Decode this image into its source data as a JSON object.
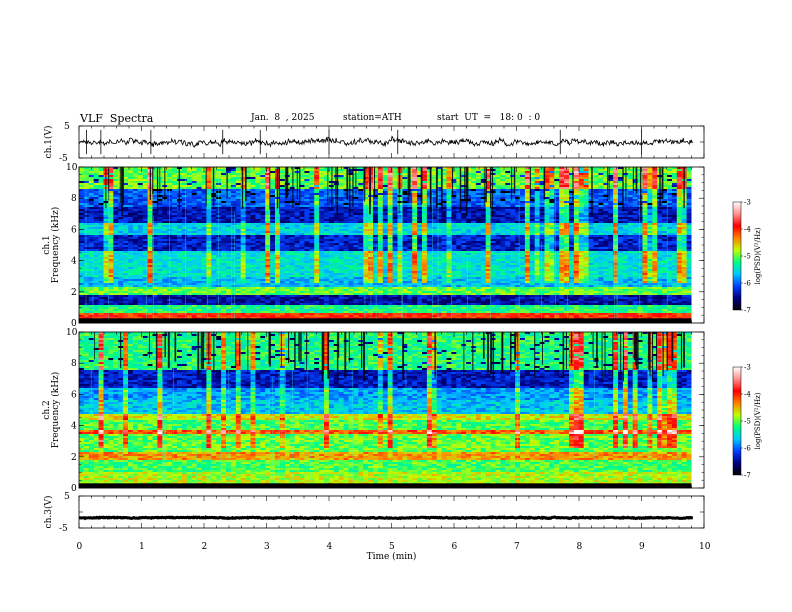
{
  "header": {
    "title": "VLF  Spectra",
    "date": "Jan.  8  , 2025",
    "station": "station=ATH",
    "start": "start  UT  =   18: 0  : 0"
  },
  "chart_data": [
    {
      "id": "ch1-waveform",
      "type": "line",
      "ylabel": "ch.1(V)",
      "ylim": [
        -5,
        5
      ],
      "yticks": [
        "5",
        "-5"
      ],
      "xlim": [
        0,
        10
      ],
      "series": [
        {
          "mean": 0,
          "noise_amplitude": 1.3,
          "spikes": [
            0.12,
            0.35,
            1.15,
            2.3,
            2.9,
            4.0,
            5.1,
            7.7,
            9.0
          ]
        }
      ],
      "color": "#000000"
    },
    {
      "id": "ch1-spectrogram",
      "type": "heatmap",
      "ylabel_top": "ch.1",
      "ylabel": "Frequency (kHz)",
      "ylim": [
        0,
        10
      ],
      "yticks": [
        "0",
        "2",
        "4",
        "6",
        "8",
        "10"
      ],
      "xlim": [
        0,
        9.8
      ],
      "colorbar": {
        "label": "log(PSD)(V²/Hz)",
        "range": [
          -7,
          -3
        ],
        "ticks": [
          "-3",
          "-4",
          "-5",
          "-6",
          "-7"
        ],
        "colors": [
          "#000000",
          "#000080",
          "#0040ff",
          "#00c8ff",
          "#00ff80",
          "#c0ff00",
          "#ff8000",
          "#ff0000",
          "#ff9090",
          "#ffffff"
        ]
      },
      "bands": [
        {
          "range": [
            0.0,
            0.3
          ],
          "level": 0.02
        },
        {
          "range": [
            0.3,
            0.7
          ],
          "level": 0.75
        },
        {
          "range": [
            0.7,
            1.1
          ],
          "level": 0.45
        },
        {
          "range": [
            1.1,
            1.8
          ],
          "level": 0.14
        },
        {
          "range": [
            1.8,
            2.3
          ],
          "level": 0.5
        },
        {
          "range": [
            2.3,
            3.0
          ],
          "level": 0.33
        },
        {
          "range": [
            3.0,
            4.6
          ],
          "level": 0.38
        },
        {
          "range": [
            4.6,
            5.6
          ],
          "level": 0.17
        },
        {
          "range": [
            5.6,
            6.4
          ],
          "level": 0.36
        },
        {
          "range": [
            6.4,
            7.4
          ],
          "level": 0.15
        },
        {
          "range": [
            7.4,
            8.6
          ],
          "level": 0.24
        },
        {
          "range": [
            8.6,
            10.0
          ],
          "level": 0.5
        }
      ]
    },
    {
      "id": "ch2-spectrogram",
      "type": "heatmap",
      "ylabel_top": "ch.2",
      "ylabel": "Frequency (kHz)",
      "ylim": [
        0,
        10
      ],
      "yticks": [
        "0",
        "2",
        "4",
        "6",
        "8",
        "10"
      ],
      "xlim": [
        0,
        9.8
      ],
      "colorbar": {
        "label": "log(PSD)(V²/Hz)",
        "range": [
          -7,
          -3
        ],
        "ticks": [
          "-3",
          "-4",
          "-5",
          "-6",
          "-7"
        ],
        "colors": [
          "#000000",
          "#000080",
          "#0040ff",
          "#00c8ff",
          "#00ff80",
          "#c0ff00",
          "#ff8000",
          "#ff0000",
          "#ff9090",
          "#ffffff"
        ]
      },
      "bands": [
        {
          "range": [
            0.0,
            0.3
          ],
          "level": 0.02
        },
        {
          "range": [
            0.3,
            1.0
          ],
          "level": 0.55
        },
        {
          "range": [
            1.0,
            1.8
          ],
          "level": 0.48
        },
        {
          "range": [
            1.8,
            2.3
          ],
          "level": 0.65
        },
        {
          "range": [
            2.3,
            3.4
          ],
          "level": 0.5
        },
        {
          "range": [
            3.4,
            3.7
          ],
          "level": 0.7
        },
        {
          "range": [
            3.7,
            4.4
          ],
          "level": 0.48
        },
        {
          "range": [
            4.4,
            4.8
          ],
          "level": 0.58
        },
        {
          "range": [
            4.8,
            5.6
          ],
          "level": 0.34
        },
        {
          "range": [
            5.6,
            6.4
          ],
          "level": 0.3
        },
        {
          "range": [
            6.4,
            7.6
          ],
          "level": 0.16
        },
        {
          "range": [
            7.6,
            10.0
          ],
          "level": 0.45
        }
      ]
    },
    {
      "id": "ch3-waveform",
      "type": "line",
      "ylabel": "ch.3(V)",
      "ylim": [
        -5,
        5
      ],
      "yticks": [
        "5",
        "-5"
      ],
      "xlim": [
        0,
        10
      ],
      "series": [
        {
          "mean": -1.8,
          "noise_amplitude": 0.2
        }
      ],
      "color": "#000000"
    }
  ],
  "xaxis": {
    "label": "Time  (min)",
    "ticks": [
      "0",
      "1",
      "2",
      "3",
      "4",
      "5",
      "6",
      "7",
      "8",
      "9",
      "10"
    ],
    "range": [
      0,
      10
    ]
  }
}
